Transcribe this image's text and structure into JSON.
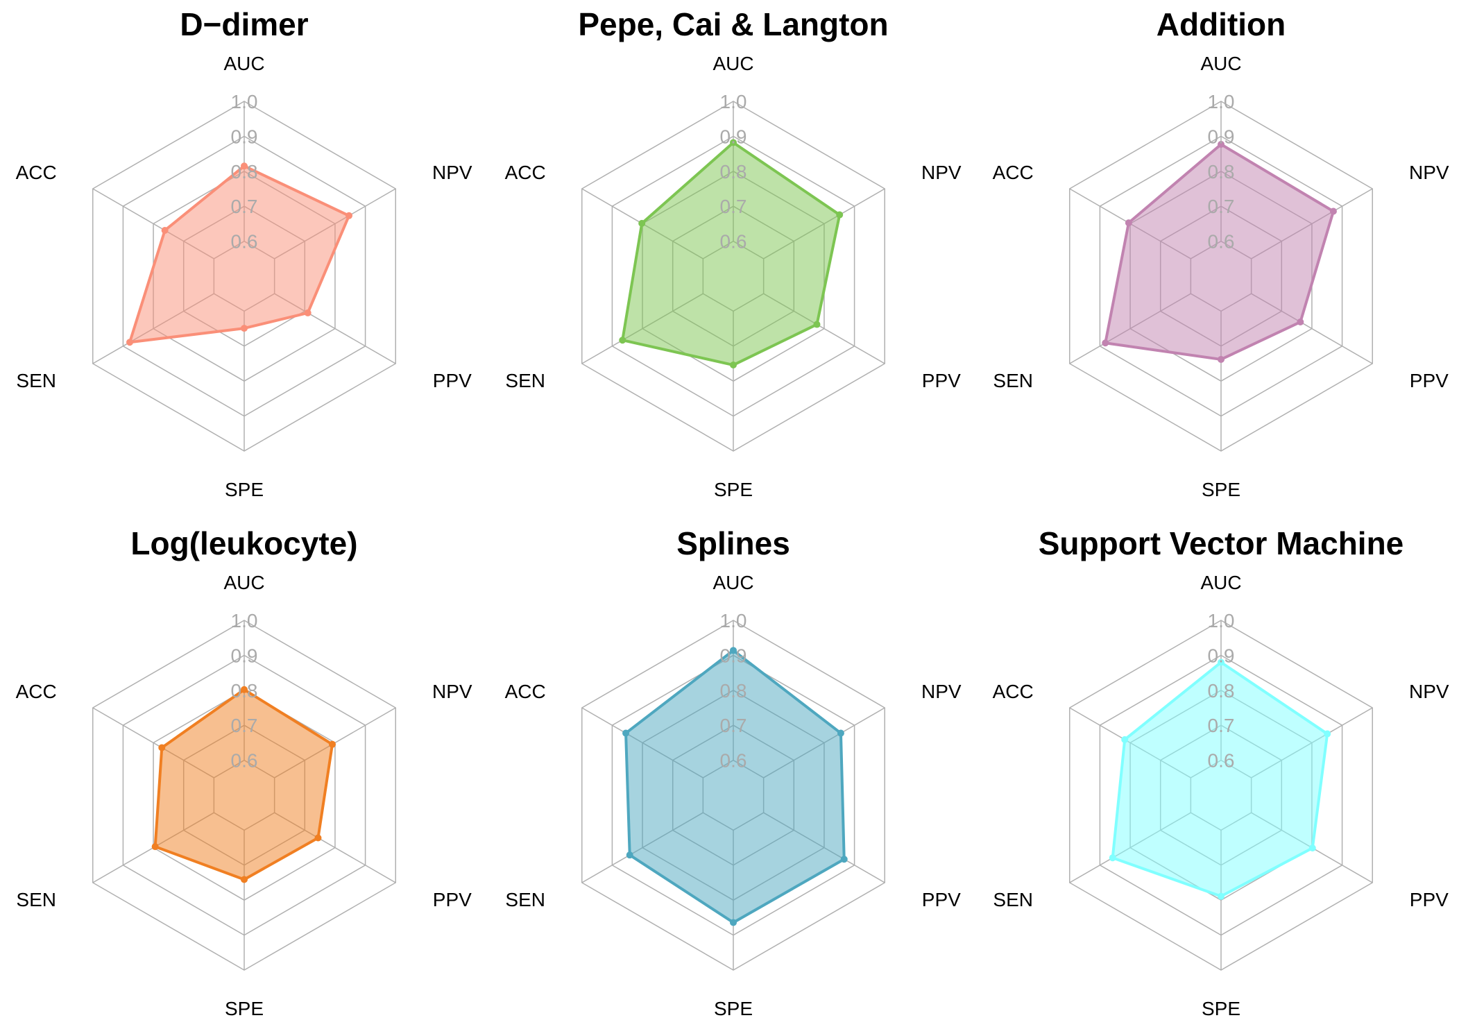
{
  "chart_data": [
    {
      "type": "radar",
      "title": "D−dimer",
      "axes": [
        "AUC",
        "NPV",
        "PPV",
        "SPE",
        "SEN",
        "ACC"
      ],
      "values": [
        0.815,
        0.846,
        0.71,
        0.649,
        0.878,
        0.762
      ],
      "color": "#FA8F78",
      "rlim": [
        0.5,
        1.0
      ],
      "ticks": [
        "0.6",
        "0.7",
        "0.8",
        "0.9",
        "1.0"
      ]
    },
    {
      "type": "radar",
      "title": "Pepe, Cai & Langton",
      "axes": [
        "AUC",
        "NPV",
        "PPV",
        "SPE",
        "SEN",
        "ACC"
      ],
      "values": [
        0.882,
        0.851,
        0.776,
        0.754,
        0.866,
        0.802
      ],
      "color": "#7DC552",
      "rlim": [
        0.5,
        1.0
      ],
      "ticks": [
        "0.6",
        "0.7",
        "0.8",
        "0.9",
        "1.0"
      ]
    },
    {
      "type": "radar",
      "title": "Addition",
      "axes": [
        "AUC",
        "NPV",
        "PPV",
        "SPE",
        "SEN",
        "ACC"
      ],
      "values": [
        0.877,
        0.871,
        0.762,
        0.738,
        0.882,
        0.805
      ],
      "color": "#C183B0",
      "rlim": [
        0.5,
        1.0
      ],
      "ticks": [
        "0.6",
        "0.7",
        "0.8",
        "0.9",
        "1.0"
      ]
    },
    {
      "type": "radar",
      "title": "Log(leukocyte)",
      "axes": [
        "AUC",
        "NPV",
        "PPV",
        "SPE",
        "SEN",
        "ACC"
      ],
      "values": [
        0.802,
        0.791,
        0.744,
        0.741,
        0.794,
        0.772
      ],
      "color": "#F07F22",
      "rlim": [
        0.5,
        1.0
      ],
      "ticks": [
        "0.6",
        "0.7",
        "0.8",
        "0.9",
        "1.0"
      ]
    },
    {
      "type": "radar",
      "title": "Splines",
      "axes": [
        "AUC",
        "NPV",
        "PPV",
        "SPE",
        "SEN",
        "ACC"
      ],
      "values": [
        0.914,
        0.855,
        0.866,
        0.864,
        0.842,
        0.855
      ],
      "color": "#4EA7BF",
      "rlim": [
        0.5,
        1.0
      ],
      "ticks": [
        "0.6",
        "0.7",
        "0.8",
        "0.9",
        "1.0"
      ]
    },
    {
      "type": "radar",
      "title": "Support Vector Machine",
      "axes": [
        "AUC",
        "NPV",
        "PPV",
        "SPE",
        "SEN",
        "ACC"
      ],
      "values": [
        0.88,
        0.851,
        0.802,
        0.789,
        0.858,
        0.818
      ],
      "color": "#80FFFF",
      "rlim": [
        0.5,
        1.0
      ],
      "ticks": [
        "0.6",
        "0.7",
        "0.8",
        "0.9",
        "1.0"
      ]
    }
  ]
}
